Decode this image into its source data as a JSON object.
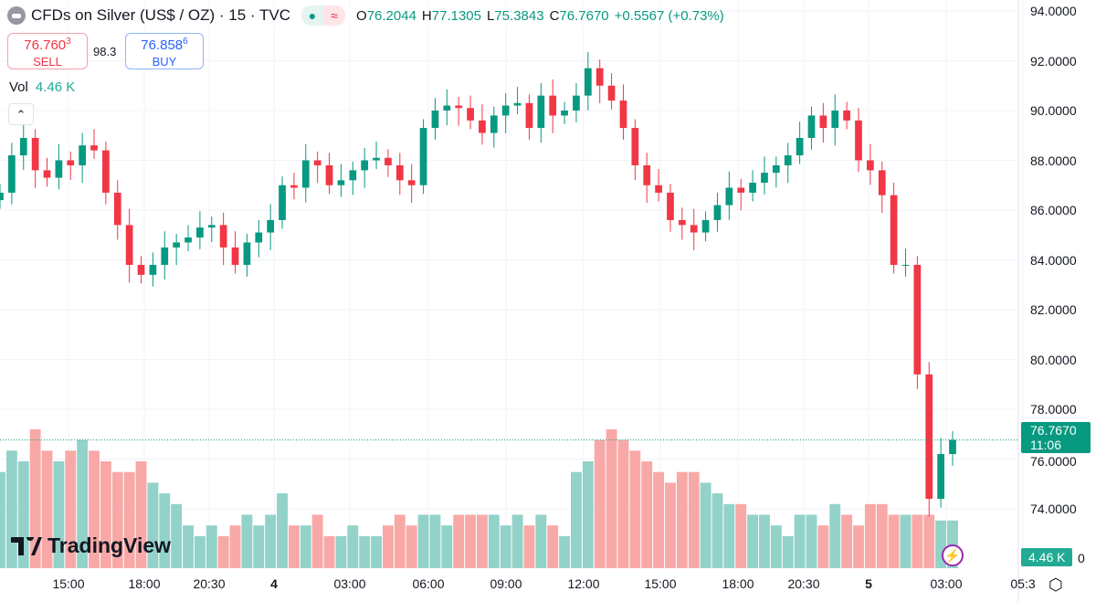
{
  "header": {
    "title": "CFDs on Silver (US$ / OZ) · 15 · TVC",
    "o_label": "O",
    "o": "76.2044",
    "h_label": "H",
    "h": "77.1305",
    "l_label": "L",
    "l": "75.3843",
    "c_label": "C",
    "c": "76.7670",
    "change": "+0.5567 (+0.73%)"
  },
  "trade": {
    "sell_price": "76.760",
    "sell_sup": "3",
    "sell_label": "SELL",
    "spread": "98.3",
    "buy_price": "76.858",
    "buy_sup": "6",
    "buy_label": "BUY"
  },
  "volume": {
    "label": "Vol",
    "value": "4.46 K"
  },
  "collapse_icon": "chevron-up-icon",
  "brand": "TradingView",
  "price_tag": {
    "price": "76.7670",
    "countdown": "11:06"
  },
  "volume_tag": "4.46 K",
  "volume_axis_zero": "0",
  "colors": {
    "up": "#089981",
    "down": "#F23645",
    "vol_up": "#92d2c9",
    "vol_down": "#f8a9a7"
  },
  "chart_data": {
    "type": "candlestick",
    "ylim": [
      73,
      94.5
    ],
    "y_ticks": [
      "94.0000",
      "92.0000",
      "90.0000",
      "88.0000",
      "86.0000",
      "84.0000",
      "82.0000",
      "80.0000",
      "78.0000",
      "76.0000",
      "74.0000"
    ],
    "x_ticks": [
      "15:00",
      "18:00",
      "20:30",
      "4",
      "03:00",
      "06:00",
      "09:00",
      "12:00",
      "15:00",
      "18:00",
      "20:30",
      "5",
      "03:00",
      "05:3"
    ],
    "closes": [
      86.7,
      88.2,
      88.9,
      87.6,
      87.3,
      88.0,
      87.8,
      88.6,
      88.4,
      86.7,
      85.4,
      83.8,
      83.4,
      83.8,
      84.5,
      84.7,
      84.9,
      85.3,
      85.4,
      84.5,
      83.8,
      84.7,
      85.1,
      85.6,
      87.0,
      86.9,
      88.0,
      87.8,
      87.0,
      87.2,
      87.6,
      88.0,
      88.1,
      87.8,
      87.2,
      87.0,
      89.3,
      90.0,
      90.2,
      90.1,
      89.6,
      89.1,
      89.8,
      90.2,
      90.3,
      89.3,
      90.6,
      89.8,
      90.0,
      90.6,
      91.7,
      91.0,
      90.4,
      89.3,
      87.8,
      87.0,
      86.7,
      85.6,
      85.4,
      85.1,
      85.6,
      86.2,
      86.9,
      86.7,
      87.1,
      87.5,
      87.8,
      88.2,
      88.9,
      89.8,
      89.3,
      90.0,
      89.6,
      88.0,
      87.6,
      86.6,
      83.8,
      83.8,
      79.4,
      74.4,
      76.2,
      76.77
    ],
    "volumes_k": [
      9,
      11,
      10,
      13,
      11,
      10,
      11,
      12,
      11,
      10,
      9,
      9,
      10,
      8,
      7,
      6,
      4,
      3,
      4,
      3,
      4,
      5,
      4,
      5,
      7,
      4,
      4,
      5,
      3,
      3,
      4,
      3,
      3,
      4,
      5,
      4,
      5,
      5,
      4,
      5,
      5,
      5,
      5,
      4,
      5,
      4,
      5,
      4,
      3,
      9,
      10,
      12,
      13,
      12,
      11,
      10,
      9,
      8,
      9,
      9,
      8,
      7,
      6,
      6,
      5,
      5,
      4,
      3,
      5,
      5,
      4,
      6,
      5,
      4,
      6,
      6,
      5,
      5,
      5,
      5,
      4.46,
      4.46
    ]
  }
}
